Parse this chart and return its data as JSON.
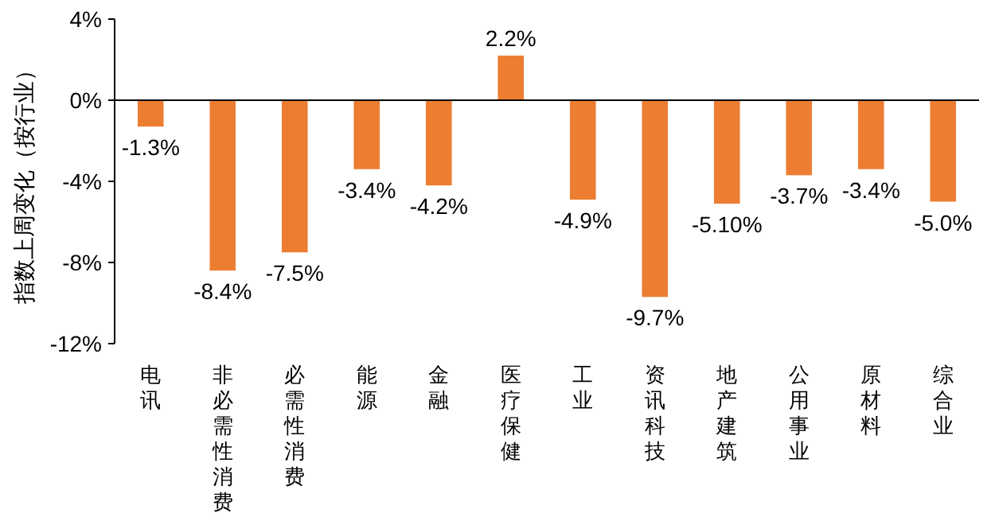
{
  "chart_data": {
    "type": "bar",
    "ylabel": "指数上周变化（按行业）",
    "categories": [
      "电讯",
      "非必需性消费",
      "必需性消费",
      "能源",
      "金融",
      "医疗保健",
      "工业",
      "资讯科技",
      "地产建筑",
      "公用事业",
      "原材料",
      "综合业"
    ],
    "values": [
      -1.3,
      -8.4,
      -7.5,
      -3.4,
      -4.2,
      2.2,
      -4.9,
      -9.7,
      -5.1,
      -3.7,
      -3.4,
      -5.0
    ],
    "value_labels": [
      "-1.3%",
      "-8.4%",
      "-7.5%",
      "-3.4%",
      "-4.2%",
      "2.2%",
      "-4.9%",
      "-9.7%",
      "-5.10%",
      "-3.7%",
      "-3.4%",
      "-5.0%"
    ],
    "color": "#ed7d31",
    "ylim": [
      -12,
      4
    ],
    "yticks": [
      {
        "value": 4,
        "label": "4%"
      },
      {
        "value": 0,
        "label": "0%"
      },
      {
        "value": -4,
        "label": "-4%"
      },
      {
        "value": -8,
        "label": "-8%"
      },
      {
        "value": -12,
        "label": "-12%"
      }
    ]
  }
}
